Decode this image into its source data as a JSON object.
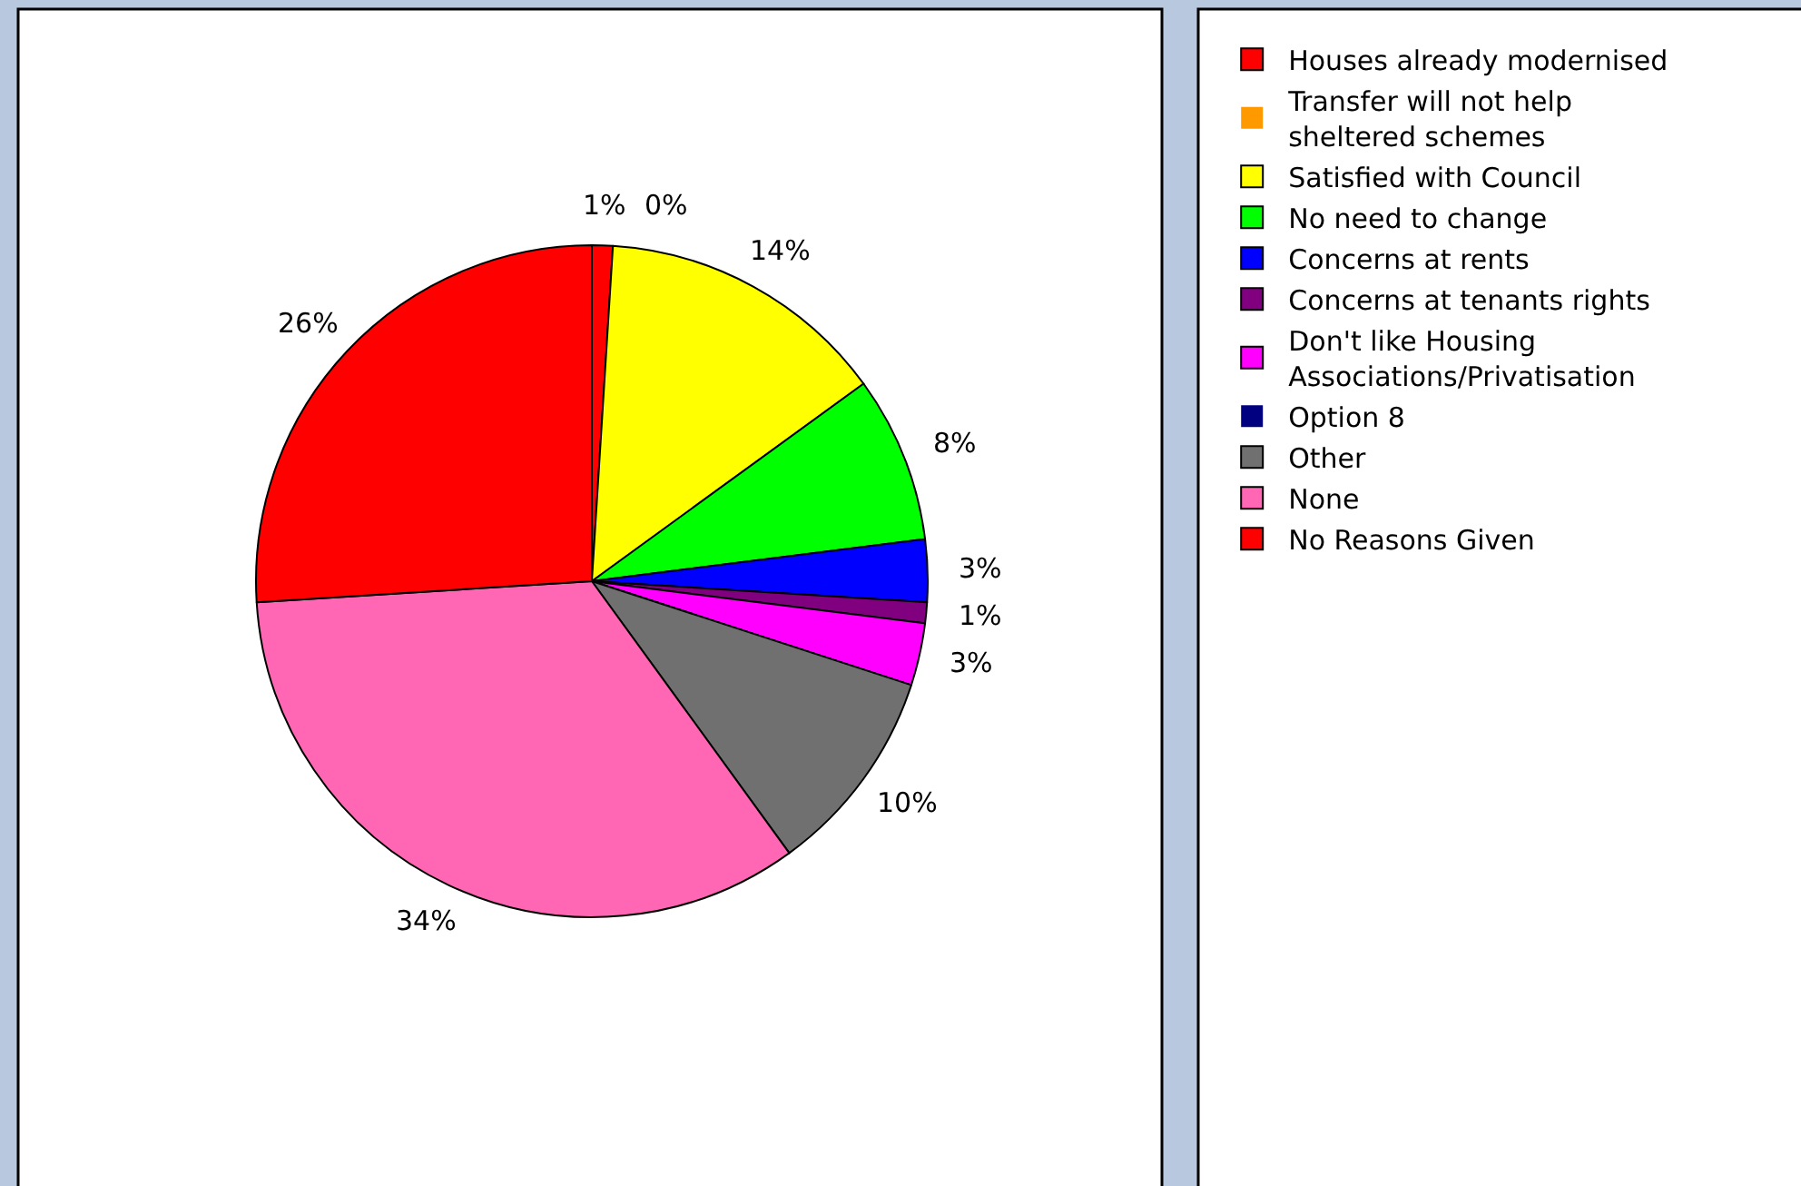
{
  "chart_data": {
    "type": "pie",
    "categories": [
      "Houses already modernised",
      "Transfer will not help sheltered schemes",
      "Satisfied with Council",
      "No need to change",
      "Concerns at rents",
      "Concerns at tenants rights",
      "Don't like Housing Associations/Privatisation",
      "Option 8",
      "Other",
      "None",
      "No Reasons Given"
    ],
    "values": [
      1,
      0,
      14,
      8,
      3,
      1,
      3,
      0,
      10,
      34,
      26
    ],
    "value_labels": [
      "1%",
      "0%",
      "14%",
      "8%",
      "3%",
      "1%",
      "3%",
      null,
      "10%",
      "34%",
      "26%"
    ],
    "colors": [
      "#ff0000",
      "#ff9900",
      "#ffff00",
      "#00ff00",
      "#0000ff",
      "#800080",
      "#ff00ff",
      "#000080",
      "#707070",
      "#ff66b3",
      "#ff0000"
    ],
    "legend": "right"
  }
}
